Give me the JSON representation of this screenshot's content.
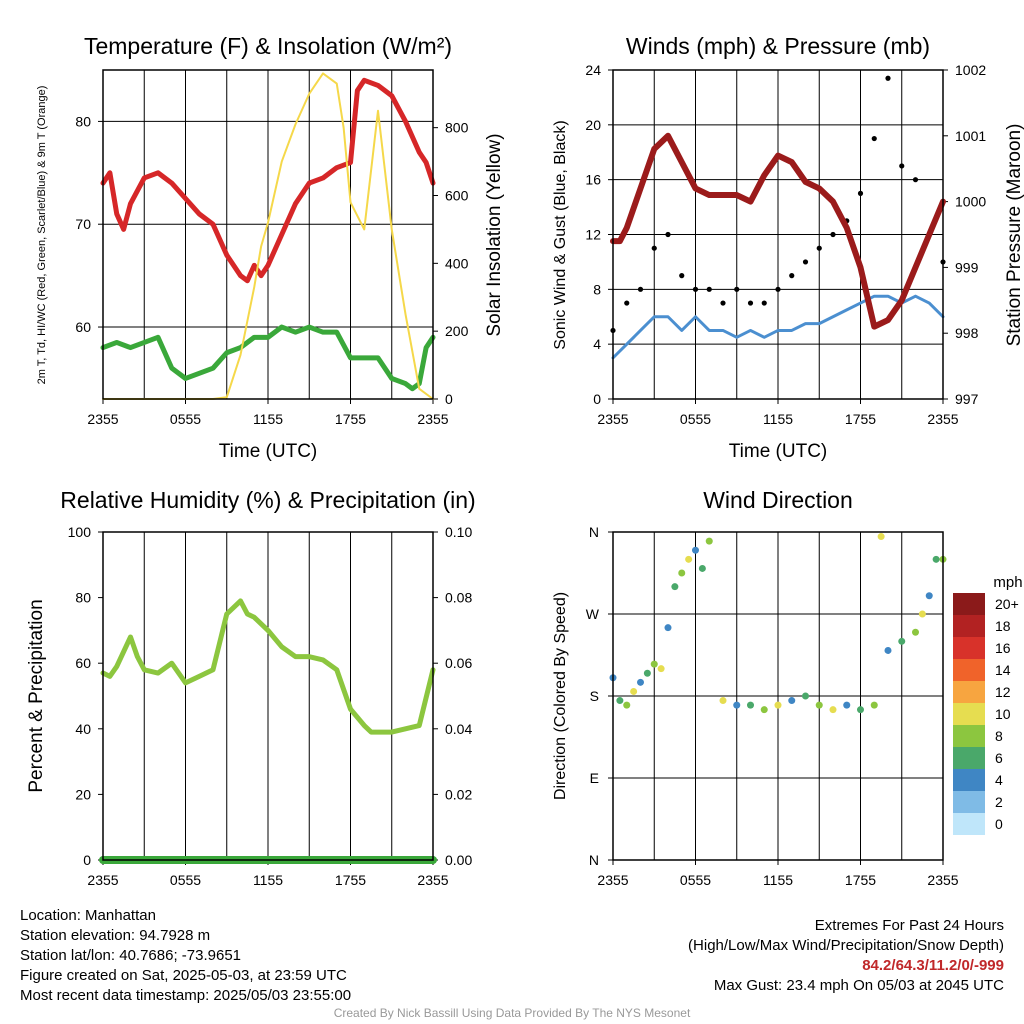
{
  "chart_data": [
    {
      "type": "line",
      "title": "Temperature (F) & Insolation (W/m²)",
      "xlabel": "Time (UTC)",
      "ylabel": "2m T, Td, HI/WC (Red, Green, Scarlet/Blue) & 9m T (Orange)",
      "y2label": "Solar Insolation (Yellow)",
      "x_ticks": [
        "2355",
        "0555",
        "1155",
        "1755",
        "2355"
      ],
      "ylim": [
        53,
        85
      ],
      "y_ticks": [
        60,
        70,
        80
      ],
      "y2lim": [
        0,
        970
      ],
      "y2_ticks": [
        0,
        200,
        400,
        600,
        800
      ],
      "grid": true,
      "series": [
        {
          "axis": "left",
          "color": "#d62728",
          "x": [
            0,
            0.5,
            1,
            1.5,
            2,
            3,
            4,
            5,
            6,
            7,
            8,
            9,
            10,
            10.5,
            11,
            11.5,
            12,
            13,
            14,
            15,
            16,
            17,
            18,
            18.5,
            19,
            20,
            21,
            22,
            23,
            23.5,
            24
          ],
          "values": [
            74,
            75,
            71,
            69.5,
            72,
            74.5,
            75,
            74,
            72.5,
            71,
            70,
            67,
            65,
            64.5,
            66,
            65,
            66,
            69,
            72,
            74,
            74.5,
            75.5,
            76,
            83,
            84,
            83.5,
            82.5,
            80,
            77,
            76,
            74
          ]
        },
        {
          "axis": "left",
          "color": "#3aa83a",
          "x": [
            0,
            1,
            2,
            3,
            4,
            5,
            6,
            7,
            8,
            9,
            10,
            11,
            12,
            13,
            14,
            15,
            16,
            17,
            18,
            19,
            20,
            21,
            22,
            22.5,
            23,
            23.5,
            24
          ],
          "values": [
            58,
            58.5,
            58,
            58.5,
            59,
            56,
            55,
            55.5,
            56,
            57.5,
            58,
            59,
            59,
            60,
            59.5,
            60,
            59.5,
            59.5,
            57,
            57,
            57,
            55,
            54.5,
            54,
            54.5,
            58,
            59
          ]
        },
        {
          "axis": "right",
          "color": "#f5d84a",
          "x": [
            0,
            6,
            8,
            9,
            10,
            11,
            11.5,
            12,
            13,
            14,
            15,
            16,
            17,
            17.5,
            18,
            19,
            20,
            21,
            22,
            23,
            24
          ],
          "values": [
            0,
            0,
            0,
            5,
            130,
            330,
            450,
            520,
            700,
            810,
            900,
            960,
            930,
            800,
            580,
            500,
            850,
            500,
            250,
            30,
            0
          ]
        }
      ]
    },
    {
      "type": "scatter",
      "title": "Winds (mph) & Pressure (mb)",
      "xlabel": "Time (UTC)",
      "ylabel": "Sonic Wind & Gust (Blue, Black)",
      "y2label": "Station Pressure (Maroon)",
      "x_ticks": [
        "2355",
        "0555",
        "1155",
        "1755",
        "2355"
      ],
      "ylim": [
        0,
        24
      ],
      "y_ticks": [
        0,
        4,
        8,
        12,
        16,
        20,
        24
      ],
      "y2lim": [
        997,
        1002
      ],
      "y2_ticks": [
        997,
        998,
        999,
        1000,
        1001,
        1002
      ],
      "grid": true,
      "series": [
        {
          "name": "Pressure",
          "axis": "right",
          "color": "#9b1b1b",
          "x": [
            0,
            0.5,
            1,
            2,
            3,
            4,
            5,
            6,
            7,
            8,
            9,
            10,
            11,
            12,
            13,
            14,
            15,
            16,
            17,
            18,
            19,
            20,
            21,
            22,
            23,
            24
          ],
          "values": [
            999.4,
            999.4,
            999.6,
            1000.2,
            1000.8,
            1001,
            1000.6,
            1000.2,
            1000.1,
            1000.1,
            1000.1,
            1000,
            1000.4,
            1000.7,
            1000.6,
            1000.3,
            1000.2,
            1000,
            999.6,
            999,
            998.1,
            998.2,
            998.5,
            999,
            999.5,
            1000
          ]
        },
        {
          "name": "Sonic Wind",
          "axis": "left",
          "color": "#4b8fd0",
          "x": [
            0,
            1,
            2,
            3,
            4,
            5,
            6,
            7,
            8,
            9,
            10,
            11,
            12,
            13,
            14,
            15,
            16,
            17,
            18,
            19,
            20,
            21,
            22,
            23,
            24
          ],
          "values": [
            3,
            4,
            5,
            6,
            6,
            5,
            6,
            5,
            5,
            4.5,
            5,
            4.5,
            5,
            5,
            5.5,
            5.5,
            6,
            6.5,
            7,
            7.5,
            7.5,
            7,
            7.5,
            7,
            6
          ]
        },
        {
          "name": "Gust",
          "axis": "left",
          "color": "#000000",
          "x": [
            0,
            1,
            2,
            3,
            4,
            5,
            6,
            7,
            8,
            9,
            10,
            11,
            12,
            13,
            14,
            15,
            16,
            17,
            18,
            19,
            20,
            21,
            22,
            23,
            24
          ],
          "values": [
            5,
            7,
            8,
            11,
            12,
            9,
            8,
            8,
            7,
            8,
            7,
            7,
            8,
            9,
            10,
            11,
            12,
            13,
            15,
            19,
            23.4,
            17,
            16,
            12,
            10
          ]
        }
      ]
    },
    {
      "type": "line",
      "title": "Relative Humidity (%) & Precipitation (in)",
      "ylabel": "Percent & Precipitation",
      "x_ticks": [
        "2355",
        "0555",
        "1155",
        "1755",
        "2355"
      ],
      "ylim": [
        0,
        100
      ],
      "y_ticks": [
        0,
        20,
        40,
        60,
        80,
        100
      ],
      "y2lim": [
        0,
        0.1
      ],
      "y2_ticks": [
        "0.00",
        "0.02",
        "0.04",
        "0.06",
        "0.08",
        "0.10"
      ],
      "grid": true,
      "series": [
        {
          "name": "RH",
          "axis": "left",
          "color": "#8cc63f",
          "x": [
            0,
            0.5,
            1,
            2,
            2.5,
            3,
            4,
            5,
            6,
            7,
            8,
            9,
            10,
            10.5,
            11,
            12,
            13,
            14,
            15,
            16,
            17,
            18,
            19,
            19.5,
            20,
            21,
            22,
            23,
            24
          ],
          "values": [
            57,
            56,
            59,
            68,
            62,
            58,
            57,
            60,
            54,
            56,
            58,
            75,
            79,
            75,
            74,
            70,
            65,
            62,
            62,
            61,
            58,
            46,
            41,
            39,
            39,
            39,
            40,
            41,
            58
          ]
        },
        {
          "name": "Precipitation",
          "axis": "left",
          "color": "#3aa83a",
          "x": [
            0,
            24
          ],
          "values": [
            0,
            0
          ]
        }
      ]
    },
    {
      "type": "scatter",
      "title": "Wind Direction",
      "ylabel": "Direction (Colored By Speed)",
      "x_ticks": [
        "2355",
        "0555",
        "1155",
        "1755",
        "2355"
      ],
      "y_ticks": [
        "N",
        "E",
        "S",
        "W",
        "N"
      ],
      "ylim": [
        0,
        360
      ],
      "grid": true,
      "legend": {
        "title": "mph",
        "labels": [
          "20+",
          "18",
          "16",
          "14",
          "12",
          "10",
          "8",
          "6",
          "4",
          "2",
          "0"
        ],
        "colors": [
          "#8b1a1a",
          "#b22222",
          "#d8322a",
          "#f0632a",
          "#f7a540",
          "#e6dd50",
          "#8cc63f",
          "#4aa86a",
          "#3f86c4",
          "#7fbbe6",
          "#bfe6fa"
        ]
      },
      "points": [
        [
          0,
          200
        ],
        [
          0.5,
          175
        ],
        [
          1,
          170
        ],
        [
          1.5,
          185
        ],
        [
          2,
          195
        ],
        [
          2.5,
          205
        ],
        [
          3,
          215
        ],
        [
          3.5,
          210
        ],
        [
          4,
          255
        ],
        [
          4.5,
          300
        ],
        [
          5,
          315
        ],
        [
          5.5,
          330
        ],
        [
          6,
          340
        ],
        [
          6.5,
          320
        ],
        [
          7,
          350
        ],
        [
          8,
          175
        ],
        [
          9,
          170
        ],
        [
          10,
          170
        ],
        [
          11,
          165
        ],
        [
          12,
          170
        ],
        [
          13,
          175
        ],
        [
          14,
          180
        ],
        [
          15,
          170
        ],
        [
          16,
          165
        ],
        [
          17,
          170
        ],
        [
          18,
          165
        ],
        [
          19,
          170
        ],
        [
          19.5,
          355
        ],
        [
          20,
          230
        ],
        [
          21,
          240
        ],
        [
          22,
          250
        ],
        [
          22.5,
          270
        ],
        [
          23,
          290
        ],
        [
          23.5,
          330
        ],
        [
          24,
          330
        ]
      ]
    }
  ],
  "info": {
    "location": "Location: Manhattan",
    "elevation": "Station elevation: 94.7928 m",
    "latlon": "Station lat/lon: 40.7686; -73.9651",
    "created": "Figure created on Sat, 2025-05-03, at 23:59 UTC",
    "recent": "Most recent data timestamp: 2025/05/03 23:55:00"
  },
  "extremes": {
    "title": "Extremes For Past 24 Hours",
    "subtitle": "(High/Low/Max Wind/Precipitation/Snow Depth)",
    "values": "84.2/64.3/11.2/0/-999",
    "max_gust": "Max Gust: 23.4 mph On 05/03 at 2045 UTC"
  },
  "credit": "Created By Nick Bassill Using Data Provided By The NYS Mesonet"
}
